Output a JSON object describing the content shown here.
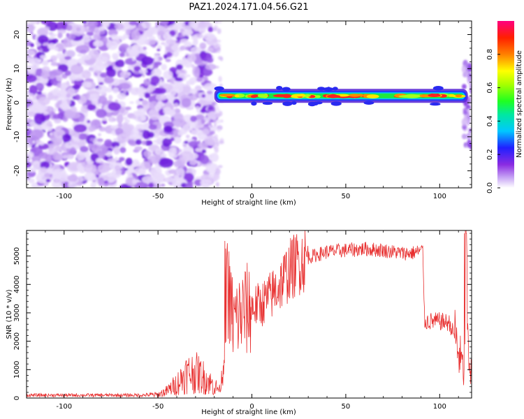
{
  "title": "PAZ1.2024.171.04.56.G21",
  "chart_data": [
    {
      "type": "heatmap",
      "xlabel": "Height of straight line (km)",
      "ylabel": "Frequency (Hz)",
      "xlim": [
        -120,
        117
      ],
      "ylim": [
        -25,
        24
      ],
      "x_ticks": [
        -100,
        -50,
        0,
        50,
        100
      ],
      "y_ticks": [
        -20,
        -10,
        0,
        10,
        20
      ],
      "colorbar": {
        "label": "Normalized spectral amplitude",
        "ticks": [
          0.0,
          0.2,
          0.4,
          0.6,
          0.8
        ],
        "range": [
          0,
          1
        ],
        "colormap": "rainbow (purple-blue-cyan-green-yellow-orange-red-pink)"
      },
      "regions": [
        {
          "x_range": [
            -120,
            -20
          ],
          "description": "broadband noise, amplitude 0.0-0.15",
          "freq_range": [
            -25,
            24
          ]
        },
        {
          "x_range": [
            -20,
            115
          ],
          "description": "narrow carrier line",
          "center_freq_hz": 2,
          "peak_amplitude": 0.85
        }
      ]
    },
    {
      "type": "line",
      "xlabel": "Height of straight line (km)",
      "ylabel": "SNR (10 * v/v)",
      "xlim": [
        -120,
        117
      ],
      "ylim": [
        0,
        5900
      ],
      "x_ticks": [
        -100,
        -50,
        0,
        50,
        100
      ],
      "y_ticks": [
        0,
        1000,
        2000,
        3000,
        4000,
        5000
      ],
      "series": [
        {
          "color": "#e83030",
          "x": [
            -120,
            -100,
            -80,
            -60,
            -50,
            -45,
            -40,
            -35,
            -30,
            -25,
            -20,
            -17,
            -15,
            -13,
            -11,
            -10,
            -5,
            0,
            5,
            10,
            15,
            20,
            25,
            30,
            40,
            50,
            60,
            70,
            80,
            85,
            91,
            92,
            95,
            100,
            105,
            108,
            110,
            112,
            113,
            114,
            116,
            117
          ],
          "y": [
            100,
            100,
            100,
            100,
            120,
            250,
            500,
            850,
            900,
            700,
            400,
            300,
            1200,
            3000,
            3200,
            2700,
            3000,
            3200,
            3300,
            3600,
            4000,
            4500,
            4800,
            4950,
            5150,
            5200,
            5250,
            5200,
            5100,
            5100,
            5200,
            2700,
            2700,
            2700,
            2650,
            2200,
            1600,
            1200,
            700,
            5700,
            600,
            1000
          ]
        }
      ]
    }
  ]
}
